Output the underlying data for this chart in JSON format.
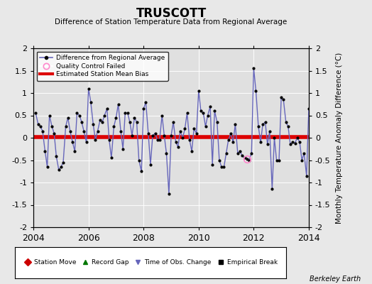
{
  "title": "TRUSCOTT",
  "subtitle": "Difference of Station Temperature Data from Regional Average",
  "ylabel": "Monthly Temperature Anomaly Difference (°C)",
  "xlabel_bottom": "Berkeley Earth",
  "xlim": [
    2004,
    2014
  ],
  "ylim": [
    -2,
    2
  ],
  "yticks": [
    -2,
    -1.5,
    -1,
    -0.5,
    0,
    0.5,
    1,
    1.5,
    2
  ],
  "xticks": [
    2004,
    2006,
    2008,
    2010,
    2012,
    2014
  ],
  "bias_value": 0.02,
  "background_color": "#e8e8e8",
  "plot_bg_color": "#e0e0e0",
  "line_color": "#6666bb",
  "bias_color": "#dd0000",
  "qc_fail_x": [
    2011.75
  ],
  "qc_fail_y": [
    -0.48
  ],
  "time_series": {
    "x": [
      2004.08,
      2004.17,
      2004.25,
      2004.33,
      2004.42,
      2004.5,
      2004.58,
      2004.67,
      2004.75,
      2004.83,
      2004.92,
      2005.0,
      2005.08,
      2005.17,
      2005.25,
      2005.33,
      2005.42,
      2005.5,
      2005.58,
      2005.67,
      2005.75,
      2005.83,
      2005.92,
      2006.0,
      2006.08,
      2006.17,
      2006.25,
      2006.33,
      2006.42,
      2006.5,
      2006.58,
      2006.67,
      2006.75,
      2006.83,
      2006.92,
      2007.0,
      2007.08,
      2007.17,
      2007.25,
      2007.33,
      2007.42,
      2007.5,
      2007.58,
      2007.67,
      2007.75,
      2007.83,
      2007.92,
      2008.0,
      2008.08,
      2008.17,
      2008.25,
      2008.33,
      2008.42,
      2008.5,
      2008.58,
      2008.67,
      2008.75,
      2008.83,
      2008.92,
      2009.0,
      2009.08,
      2009.17,
      2009.25,
      2009.33,
      2009.42,
      2009.5,
      2009.58,
      2009.67,
      2009.75,
      2009.83,
      2009.92,
      2010.0,
      2010.08,
      2010.17,
      2010.25,
      2010.33,
      2010.42,
      2010.5,
      2010.58,
      2010.67,
      2010.75,
      2010.83,
      2010.92,
      2011.0,
      2011.08,
      2011.17,
      2011.25,
      2011.33,
      2011.42,
      2011.5,
      2011.58,
      2011.67,
      2011.75,
      2011.83,
      2011.92,
      2012.0,
      2012.08,
      2012.17,
      2012.25,
      2012.33,
      2012.42,
      2012.5,
      2012.58,
      2012.67,
      2012.75,
      2012.83,
      2012.92,
      2013.0,
      2013.08,
      2013.17,
      2013.25,
      2013.33,
      2013.42,
      2013.5,
      2013.58,
      2013.67,
      2013.75,
      2013.83,
      2013.92,
      2014.0
    ],
    "y": [
      0.55,
      0.3,
      0.25,
      0.15,
      -0.3,
      -0.65,
      0.5,
      0.25,
      0.1,
      -0.42,
      -0.72,
      -0.65,
      -0.55,
      0.25,
      0.45,
      0.15,
      -0.1,
      -0.3,
      0.55,
      0.5,
      0.35,
      0.15,
      -0.1,
      1.1,
      0.8,
      0.3,
      -0.05,
      0.15,
      0.4,
      0.35,
      0.5,
      0.65,
      -0.05,
      -0.45,
      0.25,
      0.45,
      0.75,
      0.15,
      -0.25,
      0.55,
      0.55,
      0.35,
      0.05,
      0.45,
      0.35,
      -0.5,
      -0.75,
      0.65,
      0.8,
      0.1,
      -0.6,
      0.05,
      0.1,
      -0.05,
      -0.05,
      0.5,
      0.05,
      -0.35,
      -1.25,
      0.05,
      0.35,
      -0.1,
      -0.2,
      0.15,
      0.0,
      0.2,
      0.55,
      -0.05,
      -0.3,
      0.2,
      0.1,
      1.05,
      0.6,
      0.55,
      0.25,
      0.5,
      0.7,
      -0.6,
      0.6,
      0.35,
      -0.5,
      -0.65,
      -0.65,
      -0.35,
      -0.05,
      0.1,
      -0.1,
      0.3,
      -0.35,
      -0.3,
      -0.4,
      -0.45,
      -0.48,
      -0.5,
      -0.35,
      1.55,
      1.05,
      0.25,
      -0.1,
      0.3,
      0.35,
      -0.15,
      0.15,
      -1.15,
      0.0,
      -0.5,
      -0.5,
      0.9,
      0.85,
      0.35,
      0.25,
      -0.15,
      -0.1,
      -0.12,
      0.0,
      -0.1,
      -0.5,
      -0.35,
      -0.85,
      0.65
    ]
  }
}
